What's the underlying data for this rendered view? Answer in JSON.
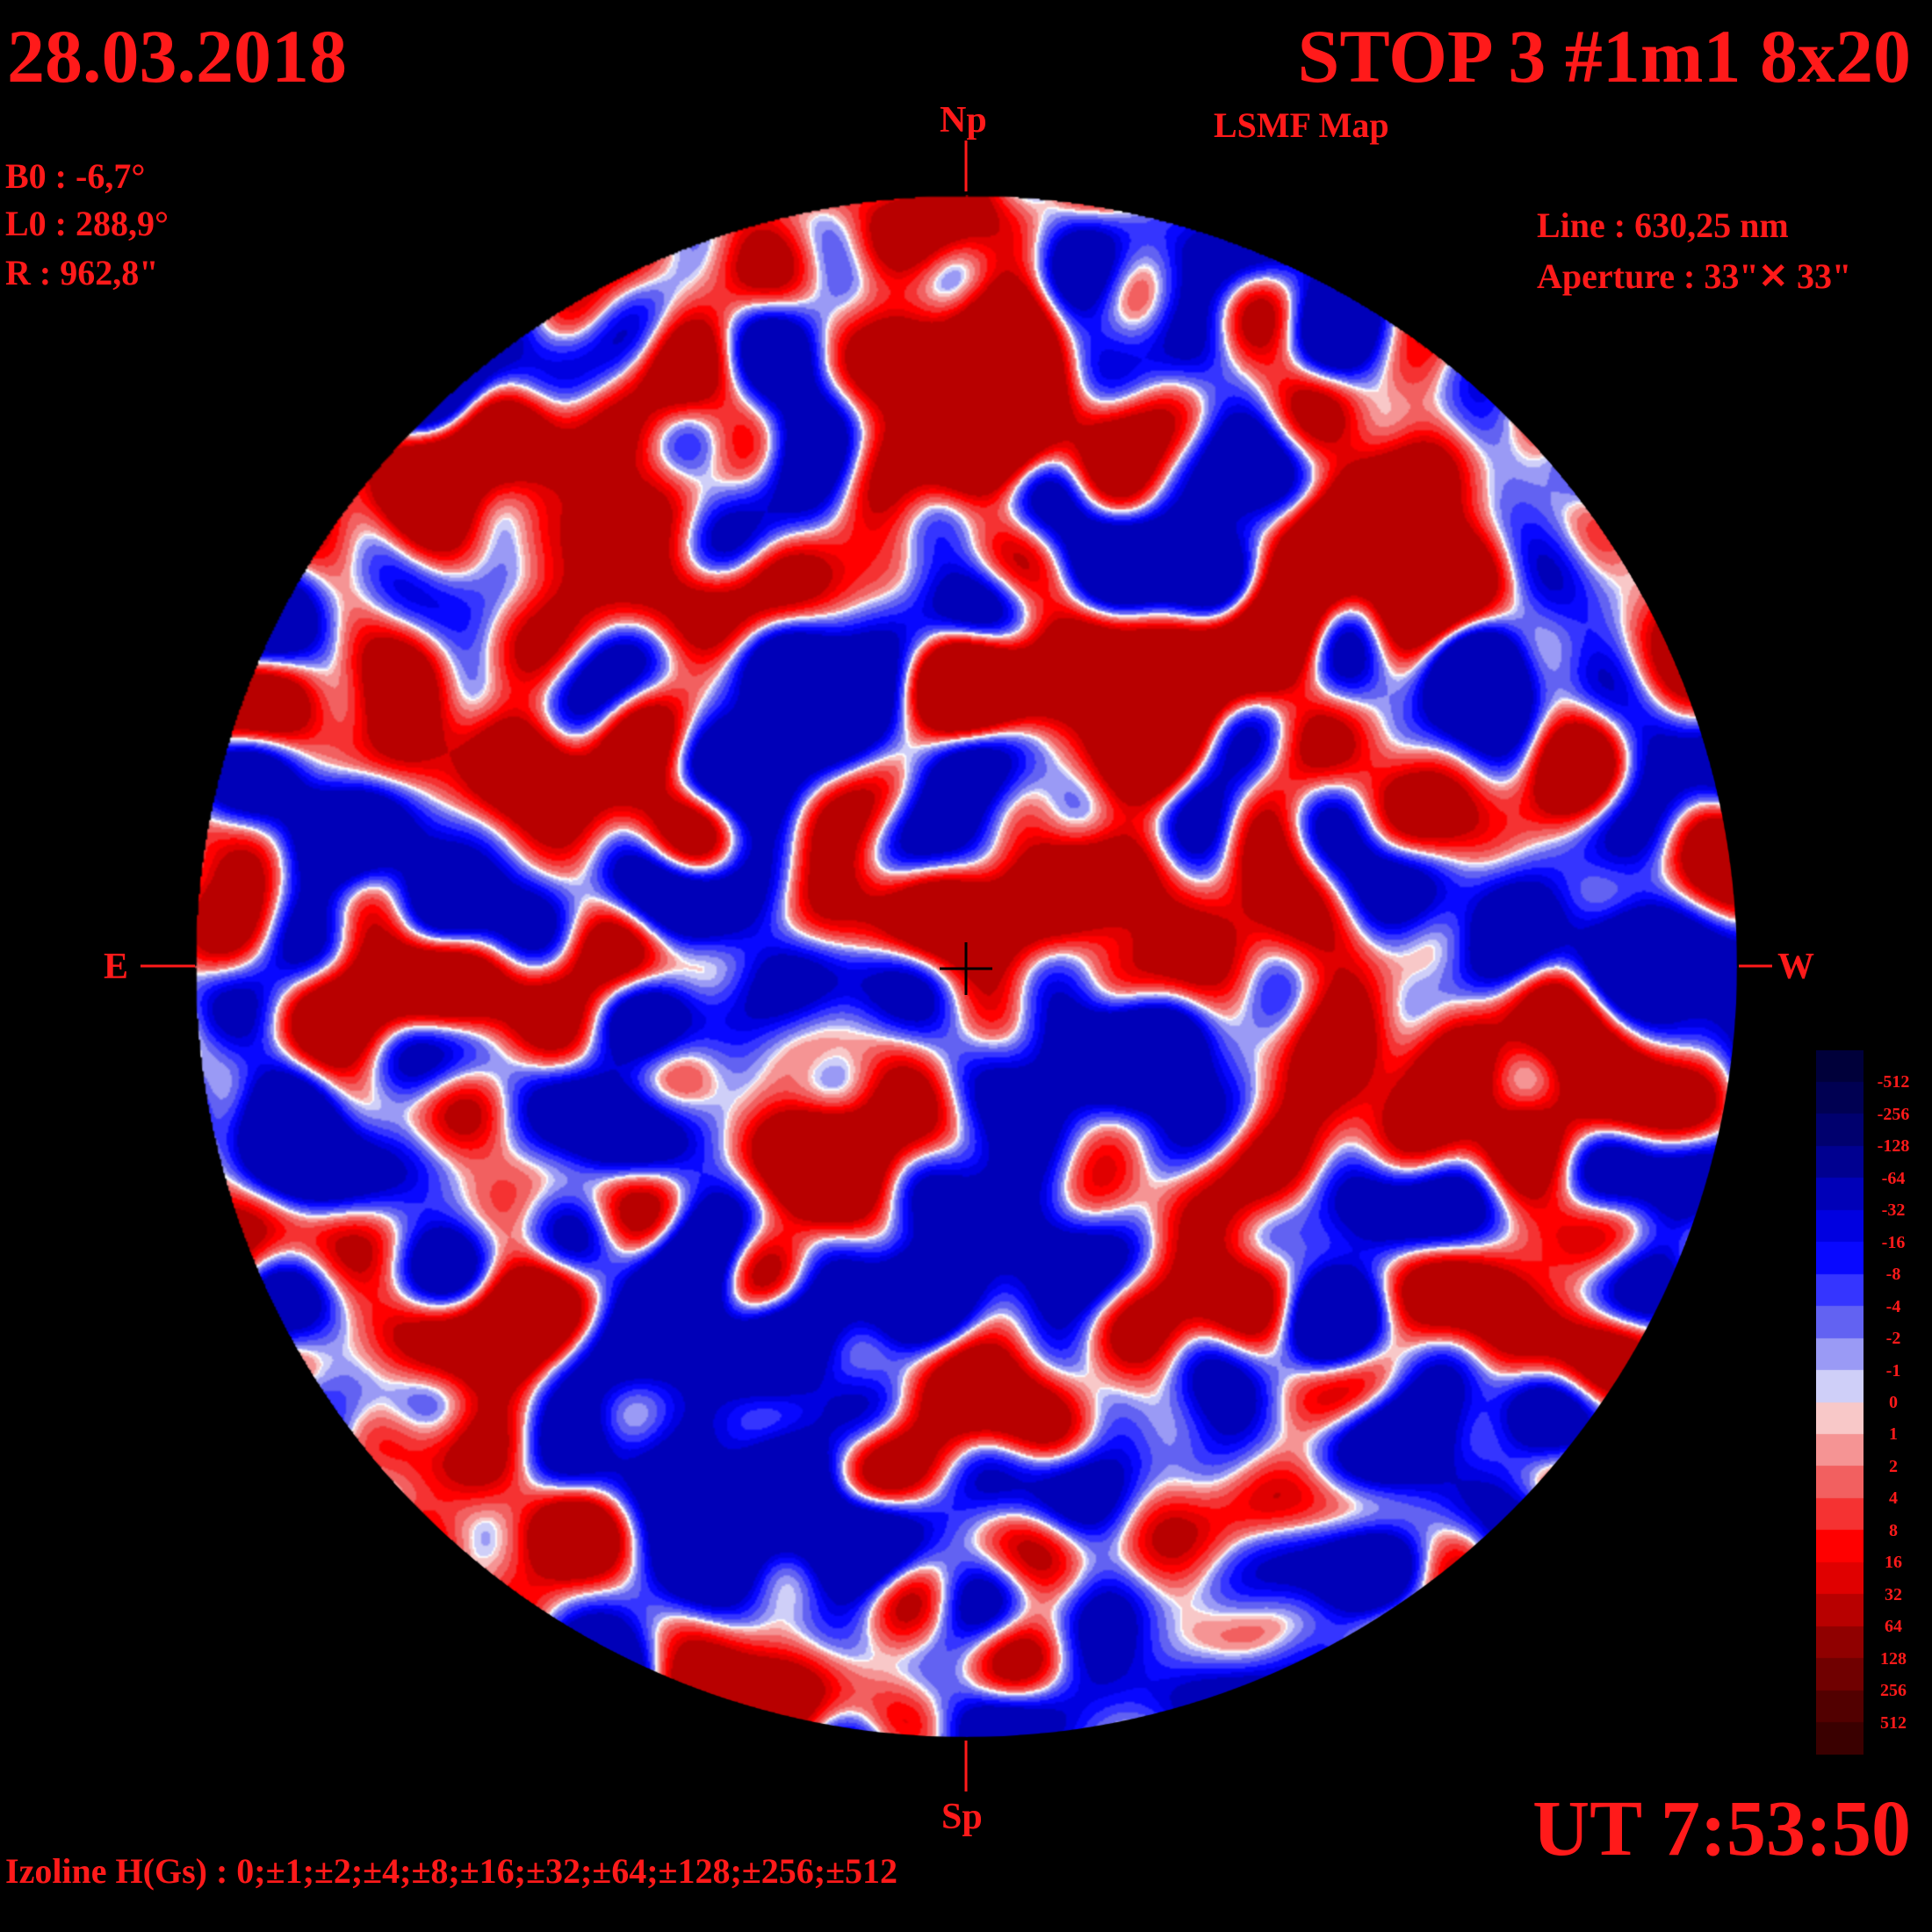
{
  "header": {
    "date": "28.03.2018",
    "title": "STOP 3 #1m1 8x20",
    "subtitle": "LSMF  Map"
  },
  "parameters": {
    "b0": "B0 : -6,7°",
    "l0": "L0 : 288,9°",
    "r": "R  : 962,8\""
  },
  "instrument": {
    "line": "Line :  630,25 nm",
    "aperture": "Aperture : 33\"✕ 33\""
  },
  "directions": {
    "north": "Np",
    "south": "Sp",
    "east": "E",
    "west": "W"
  },
  "time": "UT 7:53:50",
  "izoline": "Izoline H(Gs) : 0;±1;±2;±4;±8;±16;±32;±64;±128;±256;±512",
  "colorbar": {
    "labels": [
      "-512",
      "-256",
      "-128",
      "-64",
      "-32",
      "-16",
      "-8",
      "-4",
      "-2",
      "-1",
      "0",
      "1",
      "2",
      "4",
      "8",
      "16",
      "32",
      "64",
      "128",
      "256",
      "512"
    ],
    "colors": [
      "#00003a",
      "#000052",
      "#00006e",
      "#000090",
      "#0000b8",
      "#0000e0",
      "#0808ff",
      "#3535ff",
      "#6262f2",
      "#9a9af5",
      "#cfcff8",
      "#f8c8c8",
      "#f59494",
      "#f26060",
      "#f53232",
      "#ff0000",
      "#e00000",
      "#b80000",
      "#900000",
      "#700000",
      "#520000",
      "#3a0000"
    ]
  },
  "colors": {
    "background": "#000000",
    "text": "#ff1a1a",
    "contour": "#ffffff"
  }
}
